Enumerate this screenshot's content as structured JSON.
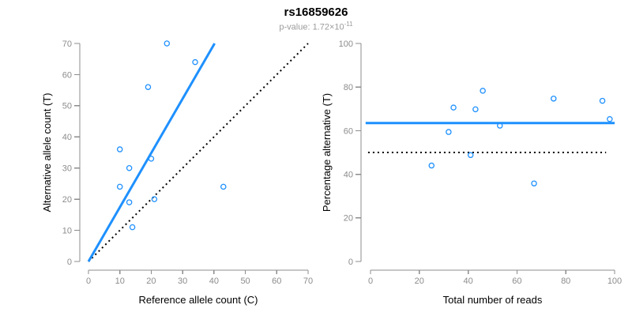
{
  "header": {
    "title": "rs16859626",
    "subtitle_prefix": "p-value: 1.72×10",
    "subtitle_exponent": "-11"
  },
  "colors": {
    "accent_blue": "#1E90FF",
    "axis_gray": "#8C8C8C",
    "tick_text_gray": "#8C8C8C",
    "axis_title_black": "#000000",
    "subtitle_gray": "#9B9B9B",
    "dotted_line_black": "#000000"
  },
  "chart_data": [
    {
      "type": "scatter",
      "name": "allele-counts-scatter",
      "xlabel": "Reference allele count (C)",
      "ylabel": "Alternative allele count (T)",
      "xlim": [
        0,
        70
      ],
      "ylim": [
        0,
        70
      ],
      "xticks": [
        0,
        10,
        20,
        30,
        40,
        50,
        60,
        70
      ],
      "yticks": [
        0,
        10,
        20,
        30,
        40,
        50,
        60,
        70
      ],
      "grid": false,
      "point_color": "#1E90FF",
      "points": [
        [
          10,
          36
        ],
        [
          10,
          24
        ],
        [
          13,
          30
        ],
        [
          13,
          19
        ],
        [
          14,
          11
        ],
        [
          19,
          56
        ],
        [
          20,
          33
        ],
        [
          21,
          20
        ],
        [
          25,
          70
        ],
        [
          34,
          64
        ],
        [
          43,
          24
        ]
      ],
      "lines": [
        {
          "name": "identity-line",
          "x1": 0,
          "y1": 0,
          "x2": 70,
          "y2": 70,
          "style": "dotted",
          "color": "#000000",
          "width": 2
        },
        {
          "name": "fit-line",
          "x1": 0,
          "y1": 0,
          "x2": 40.2,
          "y2": 70,
          "style": "solid",
          "color": "#1E90FF",
          "width": 3
        }
      ]
    },
    {
      "type": "scatter",
      "name": "percentage-vs-reads-scatter",
      "xlabel": "Total number of reads",
      "ylabel": "Percentage alternative (T)",
      "xlim": [
        0,
        100
      ],
      "ylim": [
        0,
        100
      ],
      "xticks": [
        0,
        20,
        40,
        60,
        80,
        100
      ],
      "yticks": [
        0,
        20,
        40,
        60,
        80,
        100
      ],
      "grid": false,
      "point_color": "#1E90FF",
      "points": [
        [
          25,
          44
        ],
        [
          32,
          59.4
        ],
        [
          34,
          70.6
        ],
        [
          41,
          48.8
        ],
        [
          43,
          69.8
        ],
        [
          46,
          78.3
        ],
        [
          53,
          62.3
        ],
        [
          67,
          35.8
        ],
        [
          75,
          74.7
        ],
        [
          95,
          73.7
        ],
        [
          98,
          65.3
        ]
      ],
      "lines": [
        {
          "name": "expected-50-percent-line",
          "x1": -1,
          "y1": 50,
          "x2": 96.5,
          "y2": 50,
          "style": "dotted",
          "color": "#000000",
          "width": 2
        },
        {
          "name": "mean-percentage-line",
          "x1": -2,
          "y1": 63.5,
          "x2": 100,
          "y2": 63.5,
          "style": "solid",
          "color": "#1E90FF",
          "width": 3
        }
      ]
    }
  ]
}
